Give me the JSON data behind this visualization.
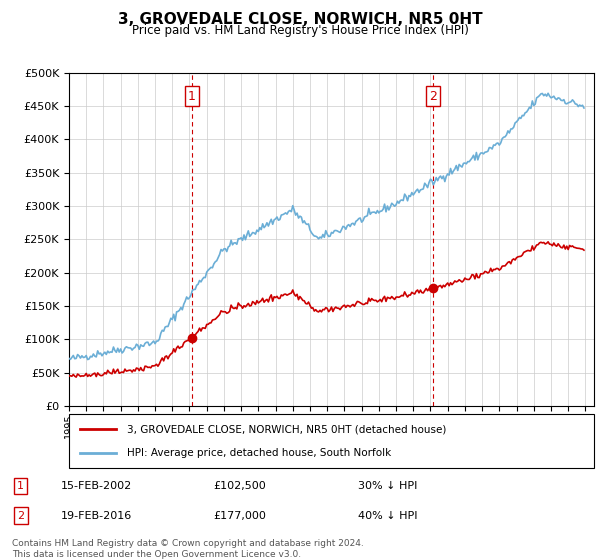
{
  "title": "3, GROVEDALE CLOSE, NORWICH, NR5 0HT",
  "subtitle": "Price paid vs. HM Land Registry's House Price Index (HPI)",
  "legend_line1": "3, GROVEDALE CLOSE, NORWICH, NR5 0HT (detached house)",
  "legend_line2": "HPI: Average price, detached house, South Norfolk",
  "annotation1_date": "15-FEB-2002",
  "annotation1_price": "£102,500",
  "annotation1_hpi": "30% ↓ HPI",
  "annotation2_date": "19-FEB-2016",
  "annotation2_price": "£177,000",
  "annotation2_hpi": "40% ↓ HPI",
  "footer": "Contains HM Land Registry data © Crown copyright and database right 2024.\nThis data is licensed under the Open Government Licence v3.0.",
  "hpi_color": "#6baed6",
  "price_color": "#cc0000",
  "vline_color": "#cc0000",
  "background_color": "#ffffff",
  "ylim": [
    0,
    500000
  ],
  "yticks": [
    0,
    50000,
    100000,
    150000,
    200000,
    250000,
    300000,
    350000,
    400000,
    450000,
    500000
  ],
  "year_start": 1995,
  "year_end": 2025
}
